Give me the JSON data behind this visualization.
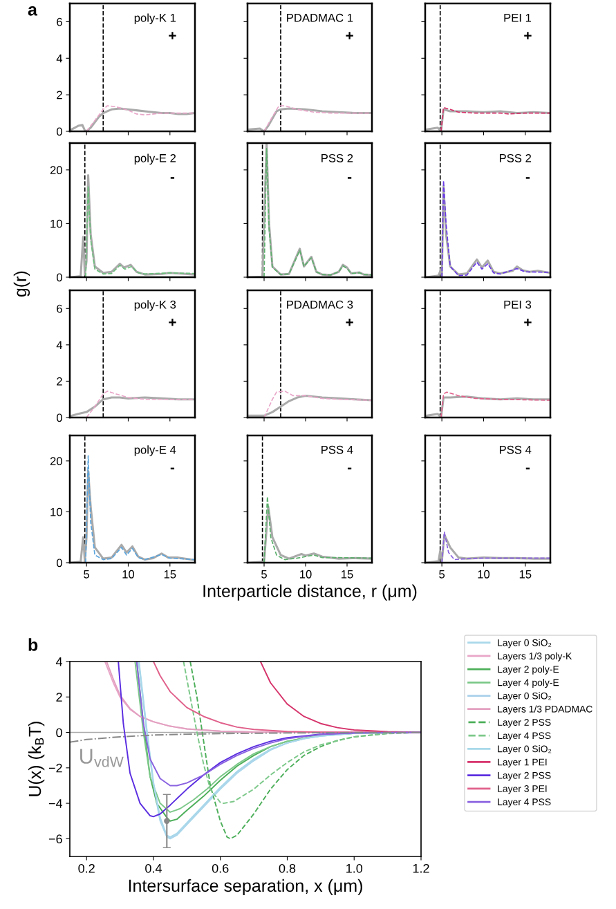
{
  "chart_data": [
    {
      "type": "line",
      "annotations": [
        "poly-K 1",
        "+",
        "a"
      ],
      "xlim": [
        3,
        18
      ],
      "xticks": [
        5,
        10,
        15
      ],
      "ylim": [
        0,
        7
      ],
      "yticks": [
        0,
        2,
        4,
        6
      ],
      "tick_labels": "y",
      "ref_lines": [
        {
          "axis": "x",
          "value": 7,
          "color": "#000000",
          "line_style": "dashed"
        }
      ],
      "series": [
        {
          "color": "#aaaaaa",
          "line_style": "solid",
          "x": [
            3.2,
            4,
            4.5,
            4.8,
            5,
            5.5,
            6,
            6.5,
            7,
            7.5,
            8,
            9,
            10,
            11,
            12,
            13,
            14,
            15,
            16,
            17,
            18
          ],
          "values": [
            0.1,
            0.3,
            0.35,
            0.05,
            0,
            0.2,
            0.5,
            0.8,
            1.0,
            1.1,
            1.2,
            1.25,
            1.2,
            1.15,
            1.1,
            1.05,
            1.0,
            1.0,
            0.95,
            0.95,
            1.0
          ]
        },
        {
          "color": "#e8a6c8",
          "line_style": "dashed",
          "x": [
            5,
            6,
            7,
            7.5,
            8.5,
            10,
            11,
            12,
            14,
            18
          ],
          "values": [
            0,
            0.6,
            1.2,
            1.4,
            1.35,
            1.15,
            0.95,
            0.9,
            1.0,
            1.0
          ]
        }
      ]
    },
    {
      "type": "line",
      "annotations": [
        "PDADMAC 1",
        "+"
      ],
      "xlim": [
        3,
        18
      ],
      "xticks": [
        5,
        10,
        15
      ],
      "ylim": [
        0,
        7
      ],
      "yticks": [
        0,
        2,
        4,
        6
      ],
      "tick_labels": false,
      "ref_lines": [
        {
          "axis": "x",
          "value": 7,
          "color": "#000000",
          "line_style": "dashed"
        }
      ],
      "series": [
        {
          "color": "#aaaaaa",
          "line_style": "solid",
          "x": [
            3.2,
            4.5,
            5,
            5.5,
            6,
            6.5,
            7,
            8,
            10,
            12,
            14,
            16,
            18
          ],
          "values": [
            0.1,
            0.15,
            0,
            0.3,
            0.7,
            1.1,
            1.2,
            1.25,
            1.2,
            1.1,
            1.05,
            1.0,
            1.0
          ]
        },
        {
          "color": "#e8a6c8",
          "line_style": "dashed",
          "x": [
            5,
            6,
            6.8,
            7.5,
            9,
            11,
            13,
            18
          ],
          "values": [
            0,
            0.8,
            1.4,
            1.4,
            1.2,
            1.05,
            1.0,
            1.0
          ]
        }
      ]
    },
    {
      "type": "line",
      "annotations": [
        "PEI 1",
        "+"
      ],
      "xlim": [
        3,
        18
      ],
      "xticks": [
        5,
        10,
        15
      ],
      "ylim": [
        0,
        7
      ],
      "yticks": [
        0,
        2,
        4,
        6
      ],
      "tick_labels": false,
      "ref_lines": [
        {
          "axis": "x",
          "value": 4.8,
          "color": "#000000",
          "line_style": "dashed"
        }
      ],
      "series": [
        {
          "color": "#aaaaaa",
          "line_style": "solid",
          "x": [
            3.2,
            4.5,
            4.9,
            5.2,
            6,
            8,
            10,
            12,
            14,
            16,
            18
          ],
          "values": [
            0.1,
            0.2,
            0,
            1.2,
            1.1,
            1.1,
            1.05,
            1.1,
            1.0,
            1.05,
            1.0
          ]
        },
        {
          "color": "#d6336b",
          "line_style": "dashed",
          "x": [
            4.9,
            5.2,
            6,
            7,
            9,
            12,
            13,
            15,
            18
          ],
          "values": [
            0,
            1.3,
            1.2,
            1.05,
            1.0,
            1.0,
            0.95,
            1.0,
            1.0
          ]
        }
      ]
    },
    {
      "type": "line",
      "annotations": [
        "poly-E 2",
        "-"
      ],
      "ylabel": "g(r)",
      "xlim": [
        3,
        18
      ],
      "xticks": [
        5,
        10,
        15
      ],
      "ylim": [
        0,
        25
      ],
      "yticks": [
        0,
        10,
        20
      ],
      "tick_labels": "y",
      "ref_lines": [
        {
          "axis": "x",
          "value": 4.8,
          "color": "#000000",
          "line_style": "dashed"
        }
      ],
      "series": [
        {
          "color": "#aaaaaa",
          "line_style": "solid",
          "x": [
            3.2,
            4.3,
            4.6,
            4.8,
            5.0,
            5.2,
            5.5,
            6,
            7,
            8,
            9,
            9.5,
            10.3,
            11,
            12,
            14,
            15,
            16,
            18
          ],
          "values": [
            0,
            0.2,
            7.5,
            0.5,
            3,
            19,
            8,
            2,
            0.8,
            1,
            2.5,
            1.8,
            2.3,
            1.0,
            0.5,
            0.6,
            0.8,
            0.7,
            0.5
          ]
        },
        {
          "color": "#6bbf7c",
          "line_style": "dashed",
          "x": [
            4.9,
            5.2,
            5.5,
            6,
            7,
            8,
            9,
            9.6,
            10.4,
            11.2,
            12,
            15,
            18
          ],
          "values": [
            0,
            17,
            7,
            1.5,
            0.6,
            0.7,
            2.2,
            1.5,
            2.0,
            0.8,
            0.6,
            0.8,
            0.7
          ]
        }
      ]
    },
    {
      "type": "line",
      "annotations": [
        "PSS 2",
        "-"
      ],
      "xlim": [
        3,
        18
      ],
      "xticks": [
        5,
        10,
        15
      ],
      "ylim": [
        0,
        25
      ],
      "yticks": [
        0,
        10,
        20
      ],
      "tick_labels": false,
      "ref_lines": [
        {
          "axis": "x",
          "value": 4.8,
          "color": "#000000",
          "line_style": "dashed"
        }
      ],
      "series": [
        {
          "color": "#aaaaaa",
          "line_style": "solid",
          "x": [
            3.2,
            4.8,
            5.3,
            5.6,
            6,
            7,
            8,
            9.3,
            9.8,
            10.7,
            11.3,
            12,
            13,
            14,
            14.5,
            15,
            15.5,
            16.5,
            17,
            18
          ],
          "values": [
            0,
            0.1,
            25,
            10,
            2,
            0.5,
            0.6,
            5.3,
            2,
            3.8,
            1,
            0.5,
            0.4,
            1,
            2.3,
            1.8,
            0.7,
            0.9,
            0.5,
            0.4
          ]
        },
        {
          "color": "#5cb06c",
          "line_style": "dashed",
          "x": [
            5.0,
            5.3,
            5.6,
            6,
            7,
            8,
            9.3,
            9.8,
            10.7,
            11.3,
            12,
            13,
            14,
            14.5,
            15,
            15.5,
            16.5,
            17,
            18
          ],
          "values": [
            0,
            24,
            9,
            1.8,
            0.5,
            0.6,
            5.0,
            2,
            3.6,
            1,
            0.5,
            0.4,
            1,
            2.1,
            1.6,
            0.7,
            0.8,
            0.5,
            0.4
          ]
        }
      ]
    },
    {
      "type": "line",
      "annotations": [
        "PSS 2",
        "-"
      ],
      "xlim": [
        3,
        18
      ],
      "xticks": [
        5,
        10,
        15
      ],
      "ylim": [
        0,
        25
      ],
      "yticks": [
        0,
        10,
        20
      ],
      "tick_labels": false,
      "ref_lines": [
        {
          "axis": "x",
          "value": 4.8,
          "color": "#000000",
          "line_style": "dashed"
        }
      ],
      "series": [
        {
          "color": "#aaaaaa",
          "line_style": "solid",
          "x": [
            3.2,
            4.6,
            4.9,
            5.0,
            5.2,
            5.5,
            6,
            7,
            8,
            9.2,
            9.8,
            10.5,
            11.2,
            12,
            13.5,
            14,
            14.7,
            15.5,
            16.5,
            18
          ],
          "values": [
            0,
            0.3,
            1.5,
            0,
            17,
            8,
            2,
            0.5,
            0.7,
            3.3,
            1.8,
            3.1,
            1.0,
            0.7,
            1.2,
            2.0,
            1.3,
            1.0,
            1.2,
            0.8
          ]
        },
        {
          "color": "#6a3be6",
          "line_style": "dashed",
          "x": [
            5.0,
            5.2,
            5.5,
            6,
            7,
            8,
            9.2,
            9.8,
            10.5,
            11.2,
            12,
            14,
            15,
            18
          ],
          "values": [
            0,
            18,
            10,
            2,
            0.3,
            0.4,
            2.8,
            1.5,
            2.5,
            0.8,
            0.6,
            1.6,
            1.0,
            0.9
          ]
        }
      ]
    },
    {
      "type": "line",
      "annotations": [
        "poly-K 3",
        "+"
      ],
      "xlim": [
        3,
        18
      ],
      "xticks": [
        5,
        10,
        15
      ],
      "ylim": [
        0,
        7
      ],
      "yticks": [
        0,
        2,
        4,
        6
      ],
      "tick_labels": "y",
      "ref_lines": [
        {
          "axis": "x",
          "value": 7,
          "color": "#000000",
          "line_style": "dashed"
        }
      ],
      "series": [
        {
          "color": "#aaaaaa",
          "line_style": "solid",
          "x": [
            3.2,
            4,
            5,
            6,
            6.5,
            7,
            8,
            9,
            10,
            12,
            14,
            16,
            18
          ],
          "values": [
            0.1,
            0.2,
            0.3,
            0.6,
            0.8,
            1.0,
            1.1,
            1.1,
            1.05,
            1.1,
            1.05,
            1.0,
            1.0
          ]
        },
        {
          "color": "#e8a6c8",
          "line_style": "dashed",
          "x": [
            5,
            6,
            7,
            7.5,
            8.5,
            10,
            12,
            18
          ],
          "values": [
            0,
            0.6,
            1.3,
            1.45,
            1.3,
            1.1,
            1.0,
            1.0
          ]
        }
      ]
    },
    {
      "type": "line",
      "annotations": [
        "PDADMAC 3",
        "+"
      ],
      "xlim": [
        3,
        18
      ],
      "xticks": [
        5,
        10,
        15
      ],
      "ylim": [
        0,
        7
      ],
      "yticks": [
        0,
        2,
        4,
        6
      ],
      "tick_labels": false,
      "ref_lines": [
        {
          "axis": "x",
          "value": 7,
          "color": "#000000",
          "line_style": "dashed"
        }
      ],
      "series": [
        {
          "color": "#aaaaaa",
          "line_style": "solid",
          "x": [
            3.2,
            5,
            6,
            7,
            8,
            9,
            10,
            11,
            12,
            14,
            16,
            18
          ],
          "values": [
            0.1,
            0.1,
            0.3,
            0.6,
            0.9,
            1.1,
            1.2,
            1.15,
            1.1,
            1.05,
            1.0,
            0.95
          ]
        },
        {
          "color": "#e8a6c8",
          "line_style": "dashed",
          "x": [
            5,
            6,
            6.5,
            7.5,
            8.5,
            10,
            12,
            14,
            18
          ],
          "values": [
            0,
            1.0,
            1.4,
            1.45,
            1.2,
            1.2,
            1.05,
            1.0,
            0.95
          ]
        }
      ]
    },
    {
      "type": "line",
      "annotations": [
        "PEI 3",
        "+"
      ],
      "xlim": [
        3,
        18
      ],
      "xticks": [
        5,
        10,
        15
      ],
      "ylim": [
        0,
        7
      ],
      "yticks": [
        0,
        2,
        4,
        6
      ],
      "tick_labels": false,
      "ref_lines": [
        {
          "axis": "x",
          "value": 4.8,
          "color": "#000000",
          "line_style": "dashed"
        }
      ],
      "series": [
        {
          "color": "#aaaaaa",
          "line_style": "solid",
          "x": [
            3.2,
            4.5,
            4.9,
            5.2,
            6,
            8,
            10,
            12,
            14,
            16,
            18
          ],
          "values": [
            0.1,
            0.2,
            0,
            1.1,
            1.1,
            1.15,
            1.05,
            1.0,
            1.05,
            1.0,
            1.0
          ]
        },
        {
          "color": "#e0608a",
          "line_style": "dashed",
          "x": [
            4.9,
            5.2,
            5.6,
            7,
            9,
            12,
            18
          ],
          "values": [
            0,
            1.3,
            1.4,
            1.2,
            1.05,
            1.0,
            0.95
          ]
        }
      ]
    },
    {
      "type": "line",
      "annotations": [
        "poly-E 4",
        "-"
      ],
      "xlim": [
        3,
        18
      ],
      "xticks": [
        5,
        10,
        15
      ],
      "ylim": [
        0,
        25
      ],
      "yticks": [
        0,
        10,
        20
      ],
      "ref_lines": [
        {
          "axis": "x",
          "value": 4.8,
          "color": "#000000",
          "line_style": "dashed"
        }
      ],
      "series": [
        {
          "color": "#aaaaaa",
          "line_style": "solid",
          "x": [
            3.2,
            4.3,
            4.6,
            4.8,
            5.0,
            5.2,
            5.5,
            6,
            7,
            8,
            9.2,
            9.8,
            10.5,
            11.2,
            12,
            13,
            14,
            14.8,
            16,
            18
          ],
          "values": [
            0,
            0.2,
            5,
            0.3,
            5,
            18,
            11,
            3,
            0.8,
            1.0,
            3.5,
            2,
            3.2,
            1.2,
            0.6,
            0.9,
            1.8,
            1.0,
            1.0,
            0.5
          ]
        },
        {
          "color": "#5aa4dc",
          "line_style": "dashed",
          "x": [
            4.9,
            5.2,
            5.5,
            6,
            7,
            8,
            9.2,
            9.8,
            10.5,
            11.2,
            12,
            14,
            15,
            18
          ],
          "values": [
            0,
            21,
            8,
            1.5,
            0.6,
            0.8,
            3.0,
            1.5,
            2.8,
            1,
            0.6,
            1.6,
            0.9,
            0.6
          ]
        }
      ]
    },
    {
      "type": "line",
      "annotations": [
        "PSS 4",
        "-"
      ],
      "xlabel": "Interparticle distance, r (μm)",
      "xlim": [
        3,
        18
      ],
      "xticks": [
        5,
        10,
        15
      ],
      "ylim": [
        0,
        25
      ],
      "yticks": [
        0,
        10,
        20
      ],
      "tick_labels": "x",
      "ref_lines": [
        {
          "axis": "x",
          "value": 4.8,
          "color": "#000000",
          "line_style": "dashed"
        }
      ],
      "series": [
        {
          "color": "#aaaaaa",
          "line_style": "solid",
          "x": [
            3.2,
            5.0,
            5.5,
            6,
            7,
            8,
            9.5,
            10,
            11,
            12,
            14,
            16,
            18
          ],
          "values": [
            0,
            0.2,
            11,
            5,
            1.5,
            0.8,
            1.7,
            1.4,
            1.8,
            1.2,
            0.8,
            0.9,
            0.8
          ]
        },
        {
          "color": "#5cb06c",
          "line_style": "dashed",
          "x": [
            5.0,
            5.4,
            5.8,
            6.5,
            7.5,
            9,
            11,
            12,
            14,
            18
          ],
          "values": [
            0,
            13,
            5,
            1.5,
            0.6,
            0.9,
            1.5,
            1.0,
            1.0,
            0.9
          ]
        }
      ]
    },
    {
      "type": "line",
      "annotations": [
        "PSS 4",
        "-"
      ],
      "xlim": [
        3,
        18
      ],
      "xticks": [
        5,
        10,
        15
      ],
      "ylim": [
        0,
        25
      ],
      "yticks": [
        0,
        10,
        20
      ],
      "tick_labels": "x",
      "ref_lines": [
        {
          "axis": "x",
          "value": 4.8,
          "color": "#000000",
          "line_style": "dashed"
        }
      ],
      "series": [
        {
          "color": "#aaaaaa",
          "line_style": "solid",
          "x": [
            3.2,
            4.6,
            4.8,
            5.0,
            5.3,
            6,
            7,
            8,
            10,
            12,
            14,
            16,
            18
          ],
          "values": [
            0,
            0.3,
            2.3,
            0.3,
            5.5,
            3,
            1,
            0.8,
            1.0,
            0.9,
            0.9,
            0.8,
            0.8
          ]
        },
        {
          "color": "#8a62e0",
          "line_style": "dashed",
          "x": [
            5.0,
            5.3,
            5.8,
            6.5,
            8,
            10,
            14,
            18
          ],
          "values": [
            0,
            6.0,
            2,
            0.6,
            0.8,
            0.9,
            0.9,
            0.9
          ]
        }
      ]
    },
    {
      "type": "line",
      "annotations": [
        "b",
        "U$_{vdW}$"
      ],
      "xlabel": "Intersurface separation, x (μm)",
      "ylabel": "U(x) (k$_{B}$T)",
      "xlim": [
        0.15,
        1.2
      ],
      "xticks": [
        0.2,
        0.4,
        0.6,
        0.8,
        {
          "value": 1,
          "label": "1.0"
        },
        1.2
      ],
      "ylim": [
        -7,
        4
      ],
      "yticks": [
        {
          "value": -6,
          "label": "−6"
        },
        {
          "value": -4,
          "label": "−4"
        },
        {
          "value": -2,
          "label": "−2"
        },
        0,
        2,
        4
      ],
      "legend": "right",
      "ref_lines": [
        {
          "axis": "y",
          "value": 0,
          "color": "#aaaaaa",
          "line_style": "solid"
        }
      ],
      "series": [
        {
          "name": "Layer 0 SiO₂",
          "color": "#a8d8ea",
          "line_style": "solid",
          "x": [
            0.355,
            0.38,
            0.4,
            0.42,
            0.44,
            0.45,
            0.47,
            0.5,
            0.55,
            0.6,
            0.65,
            0.7,
            0.75,
            0.8,
            0.85,
            0.9,
            1.0,
            1.2
          ],
          "values": [
            4,
            0,
            -3,
            -5,
            -5.9,
            -6,
            -5.8,
            -5.2,
            -4.2,
            -3.2,
            -2.3,
            -1.6,
            -1.0,
            -0.6,
            -0.35,
            -0.2,
            -0.05,
            0
          ]
        },
        {
          "name": "Layers 1/3 poly-K",
          "color": "#e8a6c8",
          "line_style": "solid",
          "x": [
            0.255,
            0.28,
            0.3,
            0.33,
            0.36,
            0.4,
            0.45,
            0.5,
            0.6,
            0.7,
            1.2
          ],
          "values": [
            4,
            2.8,
            2.0,
            1.3,
            0.9,
            0.6,
            0.35,
            0.2,
            0.07,
            0.02,
            0
          ]
        },
        {
          "name": "Layer 2 poly-E",
          "color": "#4daf5a",
          "line_style": "solid",
          "x": [
            0.35,
            0.37,
            0.39,
            0.41,
            0.44,
            0.45,
            0.47,
            0.5,
            0.55,
            0.6,
            0.65,
            0.7,
            0.75,
            0.8,
            0.9,
            1.0,
            1.2
          ],
          "values": [
            4,
            0.5,
            -2.5,
            -4.0,
            -4.8,
            -5.0,
            -4.9,
            -4.4,
            -3.6,
            -2.7,
            -1.9,
            -1.3,
            -0.8,
            -0.5,
            -0.15,
            -0.05,
            0
          ]
        },
        {
          "name": "Layer 4 poly-E",
          "color": "#7cc889",
          "line_style": "solid",
          "x": [
            0.345,
            0.37,
            0.39,
            0.42,
            0.45,
            0.48,
            0.52,
            0.56,
            0.6,
            0.65,
            0.7,
            0.75,
            0.8,
            0.9,
            1.0,
            1.2
          ],
          "values": [
            4,
            0,
            -2.5,
            -4,
            -4.5,
            -4.3,
            -3.8,
            -3.2,
            -2.5,
            -1.8,
            -1.2,
            -0.8,
            -0.5,
            -0.15,
            -0.05,
            0
          ]
        },
        {
          "name": "Layer 0 SiO₂",
          "color": "#b0d4ec",
          "line_style": "solid",
          "x": [
            0.356,
            0.38,
            0.4,
            0.42,
            0.44,
            0.45,
            0.47,
            0.5,
            0.55,
            0.6,
            0.65,
            0.7,
            0.75,
            0.8,
            0.85,
            0.9,
            1.0,
            1.2
          ],
          "values": [
            4,
            0.1,
            -2.9,
            -4.9,
            -5.85,
            -5.95,
            -5.75,
            -5.15,
            -4.15,
            -3.15,
            -2.25,
            -1.55,
            -0.95,
            -0.6,
            -0.35,
            -0.2,
            -0.05,
            0
          ]
        },
        {
          "name": "Layers 1/3 PDADMAC",
          "color": "#e3a0c0",
          "line_style": "solid",
          "x": [
            0.26,
            0.28,
            0.3,
            0.33,
            0.36,
            0.4,
            0.45,
            0.5,
            0.6,
            0.7,
            1.2
          ],
          "values": [
            4,
            3.0,
            2.1,
            1.35,
            0.9,
            0.6,
            0.35,
            0.2,
            0.07,
            0.02,
            0
          ]
        },
        {
          "name": "Layer 2 PSS",
          "color": "#4daf5a",
          "line_style": "dashed",
          "x": [
            0.51,
            0.53,
            0.55,
            0.57,
            0.6,
            0.62,
            0.63,
            0.65,
            0.7,
            0.75,
            0.8,
            0.85,
            0.9,
            0.95,
            1.0,
            1.1,
            1.2
          ],
          "values": [
            4,
            2,
            -0.5,
            -3,
            -5,
            -5.9,
            -6,
            -5.8,
            -4.6,
            -3.2,
            -2.1,
            -1.3,
            -0.8,
            -0.45,
            -0.25,
            -0.05,
            0
          ]
        },
        {
          "name": "Layer 4 PSS",
          "color": "#7cc889",
          "line_style": "dashed",
          "x": [
            0.49,
            0.51,
            0.53,
            0.55,
            0.57,
            0.6,
            0.61,
            0.64,
            0.7,
            0.75,
            0.8,
            0.85,
            0.9,
            1.0,
            1.1,
            1.2
          ],
          "values": [
            4,
            2,
            0,
            -1.8,
            -3.2,
            -3.95,
            -4.0,
            -3.9,
            -3.2,
            -2.4,
            -1.7,
            -1.1,
            -0.7,
            -0.25,
            -0.07,
            0
          ]
        },
        {
          "name": "Layer 0 SiO₂",
          "color": "#a8d8ea",
          "line_style": "solid",
          "x": [
            0.357,
            0.38,
            0.4,
            0.42,
            0.44,
            0.45,
            0.47,
            0.5,
            0.55,
            0.6,
            0.65,
            0.7,
            0.75,
            0.8,
            0.85,
            0.9,
            1.0,
            1.2
          ],
          "values": [
            4,
            0.2,
            -2.8,
            -4.8,
            -5.8,
            -5.9,
            -5.7,
            -5.1,
            -4.1,
            -3.1,
            -2.2,
            -1.5,
            -0.95,
            -0.6,
            -0.35,
            -0.2,
            -0.05,
            0
          ]
        },
        {
          "name": "Layer 1 PEI",
          "color": "#d6336b",
          "line_style": "solid",
          "x": [
            0.72,
            0.75,
            0.8,
            0.85,
            0.9,
            0.95,
            1.0,
            1.1,
            1.2
          ],
          "values": [
            4,
            2.8,
            1.6,
            0.9,
            0.5,
            0.27,
            0.14,
            0.04,
            0
          ]
        },
        {
          "name": "Layer 2 PSS",
          "color": "#5b2ee0",
          "line_style": "solid",
          "x": [
            0.295,
            0.31,
            0.33,
            0.36,
            0.39,
            0.4,
            0.42,
            0.45,
            0.5,
            0.55,
            0.6,
            0.65,
            0.7,
            0.75,
            0.8,
            0.9,
            1.0,
            1.2
          ],
          "values": [
            4,
            0.5,
            -2.3,
            -4.0,
            -4.7,
            -4.75,
            -4.6,
            -4.1,
            -3.2,
            -2.4,
            -1.7,
            -1.2,
            -0.8,
            -0.5,
            -0.3,
            -0.1,
            -0.03,
            0
          ]
        },
        {
          "name": "Layer 3 PEI",
          "color": "#e0608a",
          "line_style": "solid",
          "x": [
            0.4,
            0.42,
            0.45,
            0.5,
            0.55,
            0.6,
            0.65,
            0.7,
            0.8,
            0.9,
            1.2
          ],
          "values": [
            4,
            3.2,
            2.3,
            1.4,
            0.9,
            0.55,
            0.3,
            0.17,
            0.05,
            0.01,
            0
          ]
        },
        {
          "name": "Layer 4 PSS",
          "color": "#8a62e0",
          "line_style": "solid",
          "x": [
            0.35,
            0.37,
            0.39,
            0.42,
            0.45,
            0.47,
            0.5,
            0.55,
            0.6,
            0.65,
            0.7,
            0.75,
            0.8,
            0.9,
            1.0,
            1.2
          ],
          "values": [
            4,
            0.5,
            -1.5,
            -2.6,
            -3.0,
            -3.0,
            -2.85,
            -2.4,
            -1.8,
            -1.3,
            -0.9,
            -0.6,
            -0.35,
            -0.12,
            -0.03,
            0
          ]
        },
        {
          "color": "#888888",
          "line_style": "dashdot",
          "x": [
            0.15,
            0.2,
            0.3,
            0.4,
            0.5,
            0.6,
            0.8,
            1.0,
            1.2
          ],
          "values": [
            -0.55,
            -0.4,
            -0.25,
            -0.15,
            -0.1,
            -0.07,
            -0.03,
            -0.01,
            0
          ]
        },
        {
          "type": "scatter",
          "color": "#888888",
          "marker": "circle",
          "x": [
            0.44
          ],
          "values": [
            -5
          ],
          "errors": [
            [
              -6.5,
              -3.5
            ]
          ]
        }
      ]
    }
  ]
}
